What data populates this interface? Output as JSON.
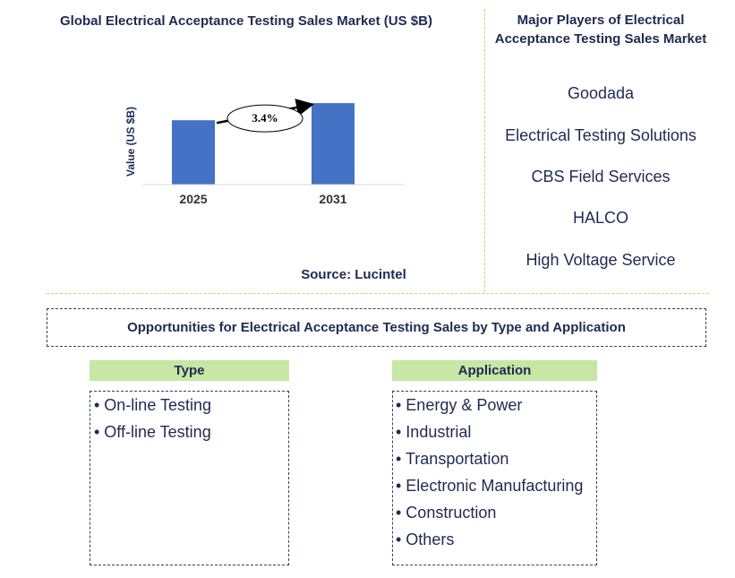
{
  "chart_data": {
    "type": "bar",
    "title": "Global Electrical Acceptance Testing Sales Market (US $B)",
    "ylabel": "Value (US $B)",
    "xlabel": "",
    "categories": [
      "2025",
      "2031"
    ],
    "values": [
      0.79,
      1.0
    ],
    "ylim": [
      0,
      1.1
    ],
    "bar_color": "#4472c4",
    "annotation": {
      "text": "3.4%",
      "type": "growth-arrow"
    },
    "grid": false
  },
  "source": "Source: Lucintel",
  "players": {
    "title": "Major Players of Electrical Acceptance Testing Sales Market",
    "items": [
      "Goodada",
      "Electrical Testing Solutions",
      "CBS Field Services",
      "HALCO",
      "High Voltage Service"
    ]
  },
  "opportunities": {
    "title": "Opportunities for Electrical Acceptance Testing Sales by Type and Application",
    "type": {
      "header": "Type",
      "items": [
        "• On-line Testing",
        "• Off-line Testing"
      ]
    },
    "application": {
      "header": "Application",
      "items": [
        "• Energy & Power",
        "• Industrial",
        "• Transportation",
        "• Electronic Manufacturing",
        "• Construction",
        "• Others"
      ]
    }
  },
  "colors": {
    "header_fill": "#c7e7a4",
    "divider": "#e8c760",
    "text": "#1f2a52"
  }
}
